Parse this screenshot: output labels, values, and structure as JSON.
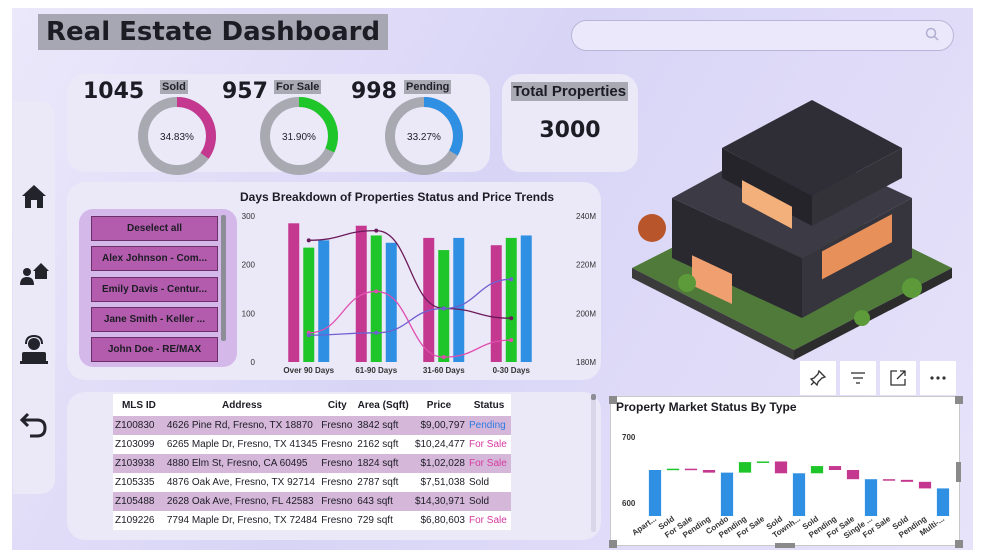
{
  "title": "Real Estate Dashboard",
  "search": {
    "placeholder": ""
  },
  "nav": {
    "icons": [
      "home-icon",
      "agents-icon",
      "support-agent-icon",
      "undo-icon"
    ]
  },
  "kpis": [
    {
      "value": "1045",
      "label": "Sold",
      "percent_label": "34.83%",
      "fraction": 0.3483,
      "color": "#c4398f"
    },
    {
      "value": "957",
      "label": "For Sale",
      "percent_label": "31.90%",
      "fraction": 0.319,
      "color": "#1fc62a"
    },
    {
      "value": "998",
      "label": "Pending",
      "percent_label": "33.27%",
      "fraction": 0.3327,
      "color": "#2f8fe2"
    }
  ],
  "total": {
    "title": "Total Properties",
    "value": "3000"
  },
  "slicer": {
    "items": [
      "Deselect all",
      "Alex Johnson - Com...",
      "Emily Davis - Centur...",
      "Jane Smith - Keller ...",
      "John Doe - RE/MAX"
    ]
  },
  "chart_data": [
    {
      "type": "bar",
      "title": "Days Breakdown of Properties Status and Price Trends",
      "categories": [
        "Over 90 Days",
        "61-90 Days",
        "31-60 Days",
        "0-30 Days"
      ],
      "series": [
        {
          "values": [
            285,
            280,
            255,
            240
          ],
          "color": "#c4398f"
        },
        {
          "values": [
            235,
            260,
            230,
            255
          ],
          "color": "#1fc62a"
        },
        {
          "values": [
            250,
            245,
            255,
            260
          ],
          "color": "#2f8fe2"
        }
      ],
      "ylim": [
        0,
        300
      ],
      "yticks": [
        "300",
        "200",
        "100",
        "0"
      ],
      "y2lim": [
        180,
        240
      ],
      "y2ticks": [
        "240M",
        "220M",
        "200M",
        "180M"
      ],
      "lines": [
        {
          "values": [
            230,
            234,
            202,
            198
          ],
          "color": "#6b1a5a"
        },
        {
          "values": [
            192,
            209,
            182,
            189
          ],
          "color": "#e04fb0"
        },
        {
          "values": [
            191,
            192,
            202,
            214
          ],
          "color": "#6f5fd0"
        }
      ]
    },
    {
      "type": "bar",
      "subtype": "waterfall",
      "title": "Property Market Status By Type",
      "yticks": [
        "700",
        "600"
      ],
      "ylim": [
        580,
        720
      ],
      "categories": [
        "Apart...",
        "Sold",
        "For Sale",
        "Pending",
        "Condo",
        "Pending",
        "For Sale",
        "Sold",
        "Townh...",
        "Sold",
        "Pending",
        "For Sale",
        "Single ...",
        "For Sale",
        "Sold",
        "Pending",
        "Multi-..."
      ],
      "bars": [
        {
          "start": 580,
          "end": 650,
          "color": "#2f8fe2"
        },
        {
          "start": 650,
          "end": 652,
          "color": "#1fc62a"
        },
        {
          "start": 652,
          "end": 650,
          "color": "#c4398f"
        },
        {
          "start": 650,
          "end": 646,
          "color": "#c4398f"
        },
        {
          "start": 580,
          "end": 646,
          "color": "#2f8fe2"
        },
        {
          "start": 646,
          "end": 662,
          "color": "#1fc62a"
        },
        {
          "start": 662,
          "end": 663,
          "color": "#1fc62a"
        },
        {
          "start": 663,
          "end": 645,
          "color": "#c4398f"
        },
        {
          "start": 580,
          "end": 645,
          "color": "#2f8fe2"
        },
        {
          "start": 645,
          "end": 656,
          "color": "#1fc62a"
        },
        {
          "start": 656,
          "end": 650,
          "color": "#c4398f"
        },
        {
          "start": 650,
          "end": 636,
          "color": "#c4398f"
        },
        {
          "start": 580,
          "end": 636,
          "color": "#2f8fe2"
        },
        {
          "start": 636,
          "end": 635,
          "color": "#c4398f"
        },
        {
          "start": 635,
          "end": 632,
          "color": "#c4398f"
        },
        {
          "start": 632,
          "end": 622,
          "color": "#c4398f"
        },
        {
          "start": 580,
          "end": 622,
          "color": "#2f8fe2"
        }
      ]
    }
  ],
  "table": {
    "headers": [
      "MLS ID",
      "Address",
      "City",
      "Area (Sqft)",
      "Price",
      "Status"
    ],
    "rows": [
      [
        "Z100830",
        "4626 Pine Rd, Fresno, TX 18870",
        "Fresno",
        "3842 sqft",
        "$9,00,797",
        "Pending"
      ],
      [
        "Z103099",
        "6265 Maple Dr, Fresno, TX 41345",
        "Fresno",
        "2162 sqft",
        "$10,24,477",
        "For Sale"
      ],
      [
        "Z103938",
        "4880 Elm St, Fresno, CA 60495",
        "Fresno",
        "1824 sqft",
        "$1,02,028",
        "For Sale"
      ],
      [
        "Z105335",
        "4876 Oak Ave, Fresno, TX 92714",
        "Fresno",
        "2787 sqft",
        "$7,51,038",
        "Sold"
      ],
      [
        "Z105488",
        "2628 Oak Ave, Fresno, FL 42583",
        "Fresno",
        "643 sqft",
        "$14,30,971",
        "Sold"
      ],
      [
        "Z109226",
        "7794 Maple Dr, Fresno, TX 72484",
        "Fresno",
        "729 sqft",
        "$6,80,603",
        "For Sale"
      ]
    ]
  },
  "visual_toolbar": {
    "icons": [
      "pin-icon",
      "filter-icon",
      "focus-mode-icon",
      "more-options-icon"
    ]
  },
  "image": {
    "icon": "house-3d-illustration"
  }
}
